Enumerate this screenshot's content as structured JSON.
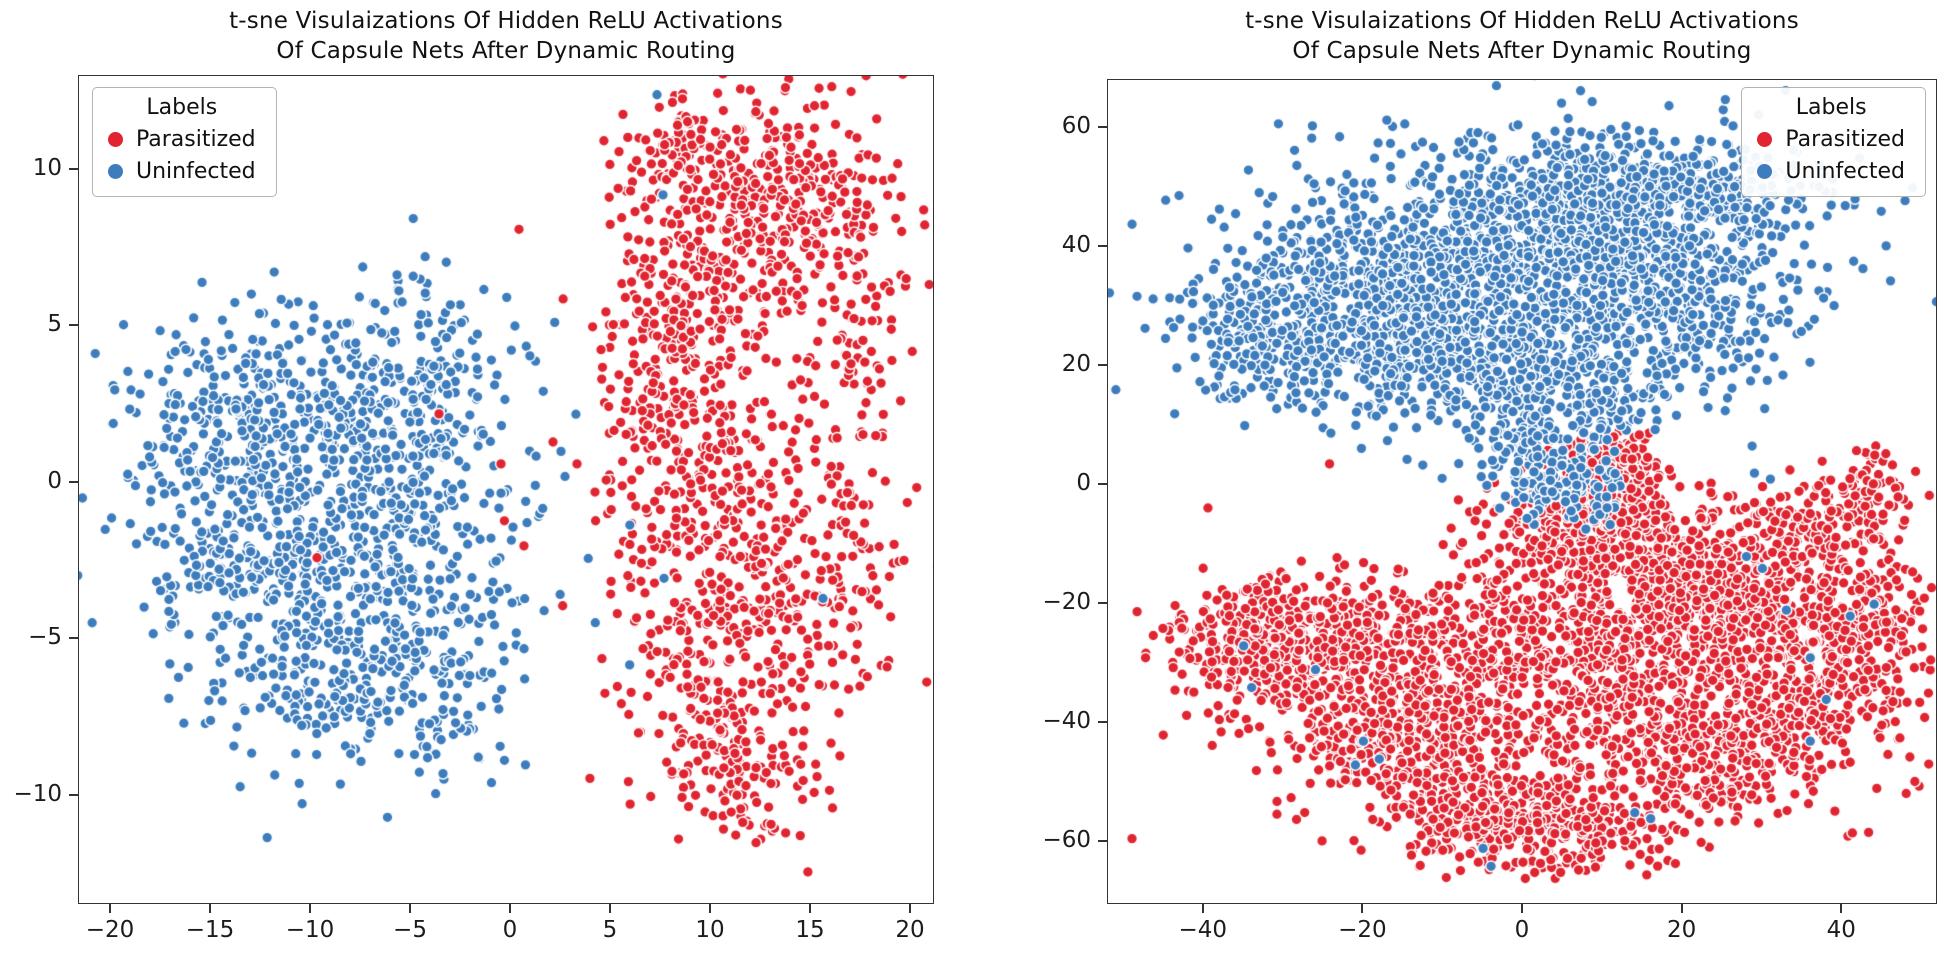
{
  "chart_data": [
    {
      "type": "scatter",
      "title": "t-sne Visulaizations Of Hidden ReLU Activations Of Capsule Nets After Dynamic Routing",
      "title_line1": "t-sne Visulaizations Of Hidden ReLU Activations",
      "title_line2": "Of Capsule Nets After Dynamic Routing",
      "xlabel": "",
      "ylabel": "",
      "legend": {
        "title": "Labels",
        "position": "upper-left",
        "entries": [
          {
            "label": "Parasitized",
            "color": "#e02531"
          },
          {
            "label": "Uninfected",
            "color": "#3e7dbd"
          }
        ]
      },
      "axes": {
        "xlim": [
          -21.6,
          21.2
        ],
        "ylim": [
          -13.5,
          13.0
        ],
        "grid": false,
        "xticks": [
          {
            "v": -20,
            "label": "−20"
          },
          {
            "v": -15,
            "label": "−15"
          },
          {
            "v": -10,
            "label": "−10"
          },
          {
            "v": -5,
            "label": "−5"
          },
          {
            "v": 0,
            "label": "0"
          },
          {
            "v": 5,
            "label": "5"
          },
          {
            "v": 10,
            "label": "10"
          },
          {
            "v": 15,
            "label": "15"
          },
          {
            "v": 20,
            "label": "20"
          }
        ],
        "yticks": [
          {
            "v": 10,
            "label": "10"
          },
          {
            "v": 5,
            "label": "5"
          },
          {
            "v": 0,
            "label": "0"
          },
          {
            "v": -5,
            "label": "−5"
          },
          {
            "v": -10,
            "label": "−10"
          }
        ]
      },
      "point_style": {
        "marker": "circle",
        "edge_color": "#ffffff"
      },
      "cluster_fields": [
        "center_x",
        "center_y",
        "std_x",
        "std_y",
        "n_points"
      ],
      "series": [
        {
          "name": "Parasitized",
          "color": "#e02531",
          "clusters": [
            [
              11,
              8.8,
              2.8,
              1.8,
              280
            ],
            [
              15.5,
              8.8,
              2.2,
              1.8,
              180
            ],
            [
              8.5,
              10.8,
              1.2,
              0.9,
              50
            ],
            [
              8.5,
              5,
              1.8,
              1.5,
              120
            ],
            [
              9.5,
              1.5,
              1.8,
              2,
              130
            ],
            [
              11,
              -2,
              2.2,
              2,
              150
            ],
            [
              15,
              -3.5,
              2.2,
              2.2,
              150
            ],
            [
              10,
              -7,
              2.2,
              2,
              160
            ],
            [
              12.5,
              -9.5,
              2,
              1.2,
              80
            ],
            [
              11.5,
              1,
              4.5,
              5.5,
              140
            ],
            [
              6.5,
              0,
              1.2,
              3,
              60
            ],
            [
              17.5,
              3,
              1.2,
              2.5,
              60
            ]
          ],
          "outliers": [
            [
              0.4,
              8.1
            ],
            [
              -3.6,
              2.2
            ],
            [
              -9.7,
              -2.4
            ],
            [
              2.1,
              1.3
            ],
            [
              3.3,
              0.6
            ],
            [
              4.2,
              -0.3
            ],
            [
              -0.5,
              0.6
            ]
          ]
        },
        {
          "name": "Uninfected",
          "color": "#3e7dbd",
          "clusters": [
            [
              -11.5,
              0.5,
              3.2,
              2.6,
              260
            ],
            [
              -7,
              -3.5,
              3.5,
              2.4,
              260
            ],
            [
              -5,
              0.5,
              3,
              2.2,
              180
            ],
            [
              -13,
              -3.5,
              2.8,
              2,
              160
            ],
            [
              -9,
              2.8,
              3.5,
              1.6,
              140
            ],
            [
              -4.5,
              -6.5,
              2.5,
              1.5,
              110
            ],
            [
              -9,
              -7,
              2.5,
              1.3,
              90
            ],
            [
              -15.5,
              2,
              2,
              1.6,
              90
            ],
            [
              -8.5,
              -1.5,
              6,
              3.8,
              120
            ],
            [
              -4,
              3.5,
              2,
              1.5,
              80
            ],
            [
              -4.7,
              6.2,
              0.7,
              0.5,
              12
            ]
          ],
          "outliers": [
            [
              7.3,
              12.4
            ],
            [
              7.6,
              9.2
            ],
            [
              2.5,
              1.0
            ],
            [
              2.7,
              0.2
            ],
            [
              15.6,
              -3.7
            ],
            [
              -3.4,
              -9.3
            ]
          ]
        }
      ]
    },
    {
      "type": "scatter",
      "title": "t-sne Visulaizations Of Hidden ReLU Activations Of Capsule Nets After Dynamic Routing",
      "title_line1": "t-sne Visulaizations Of Hidden ReLU Activations",
      "title_line2": "Of Capsule Nets After Dynamic Routing",
      "xlabel": "",
      "ylabel": "",
      "legend": {
        "title": "Labels",
        "position": "upper-right",
        "entries": [
          {
            "label": "Parasitized",
            "color": "#e02531"
          },
          {
            "label": "Uninfected",
            "color": "#3e7dbd"
          }
        ]
      },
      "axes": {
        "xlim": [
          -52,
          52
        ],
        "ylim": [
          -70.5,
          68
        ],
        "grid": false,
        "xticks": [
          {
            "v": -40,
            "label": "−40"
          },
          {
            "v": -20,
            "label": "−20"
          },
          {
            "v": 0,
            "label": "0"
          },
          {
            "v": 20,
            "label": "20"
          },
          {
            "v": 40,
            "label": "40"
          }
        ],
        "yticks": [
          {
            "v": 60,
            "label": "60"
          },
          {
            "v": 40,
            "label": "40"
          },
          {
            "v": 20,
            "label": "20"
          },
          {
            "v": 0,
            "label": "0"
          },
          {
            "v": -20,
            "label": "−20"
          },
          {
            "v": -40,
            "label": "−40"
          },
          {
            "v": -60,
            "label": "−60"
          }
        ]
      },
      "point_style": {
        "marker": "circle",
        "edge_color": "#ffffff"
      },
      "cluster_fields": [
        "center_x",
        "center_y",
        "std_x",
        "std_y",
        "n_points"
      ],
      "series": [
        {
          "name": "Parasitized",
          "color": "#e02531",
          "clusters": [
            [
              5,
              -28,
              14,
              8,
              700
            ],
            [
              -25,
              -25,
              8,
              5,
              380
            ],
            [
              -35,
              -28,
              5,
              4,
              200
            ],
            [
              -15,
              -42,
              8,
              5,
              330
            ],
            [
              -5,
              -55,
              7,
              4,
              280
            ],
            [
              8,
              -58,
              6,
              3.5,
              200
            ],
            [
              22,
              -45,
              8,
              5,
              300
            ],
            [
              35,
              -35,
              7,
              6,
              280
            ],
            [
              42,
              -22,
              5,
              5,
              200
            ],
            [
              25,
              -18,
              7,
              5,
              280
            ],
            [
              35,
              -8,
              5,
              4,
              180
            ],
            [
              15,
              -10,
              6,
              4,
              220
            ],
            [
              5,
              -8,
              5,
              4,
              180
            ],
            [
              10,
              -2,
              4,
              3,
              120
            ],
            [
              12,
              3,
              3,
              2,
              70
            ],
            [
              10,
              6,
              3,
              2.5,
              60
            ],
            [
              44,
              0,
              3,
              3,
              60
            ],
            [
              5,
              -35,
              22,
              13,
              350
            ]
          ],
          "outliers": [
            [
              -6,
              -6
            ],
            [
              -10,
              -10
            ],
            [
              47,
              -2
            ],
            [
              48,
              -28
            ]
          ]
        },
        {
          "name": "Uninfected",
          "color": "#3e7dbd",
          "clusters": [
            [
              -2,
              38,
              12,
              9,
              700
            ],
            [
              -22,
              30,
              9,
              7,
              450
            ],
            [
              10,
              48,
              9,
              6,
              380
            ],
            [
              18,
              32,
              9,
              7,
              380
            ],
            [
              -10,
              22,
              9,
              6,
              350
            ],
            [
              5,
              15,
              7,
              5,
              260
            ],
            [
              -32,
              25,
              5,
              5,
              180
            ],
            [
              0,
              35,
              20,
              13,
              320
            ],
            [
              25,
              50,
              6,
              4,
              150
            ],
            [
              2,
              4,
              4,
              4,
              110
            ],
            [
              6,
              -2,
              3,
              2.5,
              60
            ]
          ],
          "outliers": [
            [
              -35,
              -27
            ],
            [
              -34,
              -34
            ],
            [
              -20,
              -43
            ],
            [
              -18,
              -46
            ],
            [
              -21,
              -47
            ],
            [
              -5,
              -61
            ],
            [
              -4,
              -64
            ],
            [
              14,
              -55
            ],
            [
              16,
              -56
            ],
            [
              30,
              -14
            ],
            [
              33,
              -21
            ],
            [
              36,
              -29
            ],
            [
              38,
              -36
            ],
            [
              36,
              -43
            ],
            [
              41,
              -22
            ],
            [
              28,
              -12
            ],
            [
              44,
              -20
            ],
            [
              31,
              1
            ],
            [
              29,
              2
            ],
            [
              -26,
              -31
            ]
          ]
        }
      ]
    }
  ]
}
